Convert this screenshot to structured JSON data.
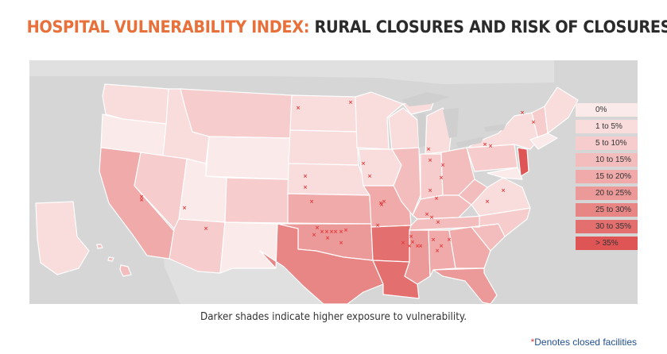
{
  "title": {
    "part1": "HOSPITAL VULNERABILITY INDEX:",
    "part2": "RURAL CLOSURES AND RISK OF CLOSURES"
  },
  "caption": "Darker shades indicate higher exposure to vulnerability.",
  "footnote": {
    "star": "*",
    "text": "Denotes closed facilities"
  },
  "marker_symbol": "×",
  "colors": {
    "background_map": "#d6d6d6",
    "title_accent": "#e8703a",
    "marker": "#e23b3b",
    "footnote_text": "#1f4e8c"
  },
  "legend": [
    {
      "label": "0%",
      "color": "#fbeaea"
    },
    {
      "label": "1 to 5%",
      "color": "#f9dcdc"
    },
    {
      "label": "5 to 10%",
      "color": "#f6cccc"
    },
    {
      "label": "10 to 15%",
      "color": "#f3bdbd"
    },
    {
      "label": "15 to 20%",
      "color": "#f0aaaa"
    },
    {
      "label": "20 to 25%",
      "color": "#ec9999"
    },
    {
      "label": "25 to 30%",
      "color": "#e88585"
    },
    {
      "label": "30 to 35%",
      "color": "#e46f6f"
    },
    {
      "label": "> 35%",
      "color": "#df5555"
    }
  ]
}
